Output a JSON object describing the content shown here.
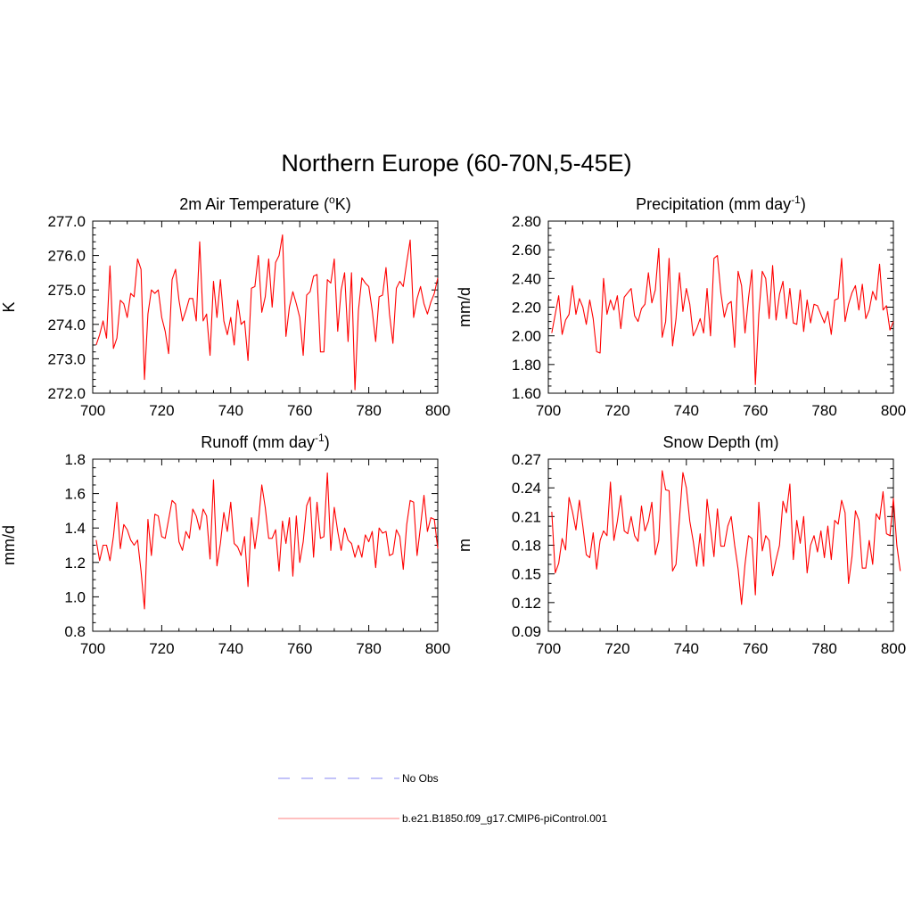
{
  "figure_title": "Northern Europe (60-70N,5-45E)",
  "legend": [
    {
      "label": "No Obs",
      "style": "dashed",
      "color": "#9f9ff5"
    },
    {
      "label": "b.e21.B1850.f09_g17.CMIP6-piControl.001",
      "style": "solid",
      "color": "#ff9a9a"
    }
  ],
  "line_color": "#ff0000",
  "chart_data": [
    {
      "type": "line",
      "title_parts": [
        {
          "t": "2m Air Temperature ("
        },
        {
          "t": "o",
          "sup": true
        },
        {
          "t": "K)"
        }
      ],
      "ylabel": "K",
      "xlim": [
        700,
        800
      ],
      "ylim": [
        272.0,
        277.0
      ],
      "xticks": [
        700,
        720,
        740,
        760,
        780,
        800
      ],
      "yticks": [
        272.0,
        273.0,
        274.0,
        275.0,
        276.0,
        277.0
      ],
      "yticklabels": [
        "272.0",
        "273.0",
        "274.0",
        "275.0",
        "276.0",
        "277.0"
      ],
      "yminor": 4,
      "series": [
        {
          "name": "b.e21.B1850.f09_g17.CMIP6-piControl.001",
          "x_start": 701,
          "values": [
            273.4,
            273.7,
            274.1,
            273.6,
            275.7,
            273.3,
            273.6,
            274.7,
            274.6,
            274.2,
            274.9,
            274.8,
            275.9,
            275.6,
            272.4,
            274.3,
            275.0,
            274.9,
            275.0,
            274.2,
            273.8,
            273.15,
            275.3,
            275.6,
            274.7,
            274.1,
            274.4,
            274.75,
            274.75,
            274.1,
            276.4,
            274.1,
            274.3,
            273.1,
            275.25,
            274.2,
            275.3,
            274.1,
            273.7,
            274.2,
            273.4,
            274.7,
            274.0,
            274.1,
            272.95,
            275.05,
            275.1,
            276.0,
            274.35,
            274.8,
            275.9,
            274.5,
            275.8,
            276.0,
            276.6,
            273.65,
            274.5,
            274.95,
            274.6,
            274.2,
            273.1,
            274.85,
            274.95,
            275.4,
            275.45,
            273.2,
            273.2,
            275.3,
            275.2,
            275.9,
            273.8,
            275.0,
            275.5,
            273.5,
            275.5,
            272.1,
            274.4,
            275.35,
            275.2,
            275.1,
            274.4,
            273.5,
            274.8,
            274.85,
            275.65,
            274.3,
            273.45,
            275.05,
            275.25,
            275.1,
            275.8,
            276.45,
            274.2,
            274.75,
            275.1,
            274.6,
            274.3,
            274.65,
            274.9,
            275.35
          ]
        }
      ]
    },
    {
      "type": "line",
      "title_parts": [
        {
          "t": "Precipitation (mm day"
        },
        {
          "t": "-1",
          "sup": true
        },
        {
          "t": ")"
        }
      ],
      "ylabel": "mm/d",
      "xlim": [
        700,
        800
      ],
      "ylim": [
        1.6,
        2.8
      ],
      "xticks": [
        700,
        720,
        740,
        760,
        780,
        800
      ],
      "yticks": [
        1.6,
        1.8,
        2.0,
        2.2,
        2.4,
        2.6,
        2.8
      ],
      "yticklabels": [
        "1.60",
        "1.80",
        "2.00",
        "2.20",
        "2.40",
        "2.60",
        "2.80"
      ],
      "yminor": 3,
      "series": [
        {
          "name": "b.e21.B1850.f09_g17.CMIP6-piControl.001",
          "x_start": 701,
          "values": [
            2.02,
            2.15,
            2.28,
            2.01,
            2.11,
            2.15,
            2.35,
            2.15,
            2.26,
            2.2,
            2.08,
            2.25,
            2.12,
            1.89,
            1.88,
            2.4,
            2.15,
            2.25,
            2.18,
            2.28,
            2.05,
            2.27,
            2.3,
            2.33,
            2.14,
            2.1,
            2.19,
            2.22,
            2.44,
            2.23,
            2.32,
            2.61,
            1.99,
            2.1,
            2.54,
            1.93,
            2.12,
            2.44,
            2.17,
            2.33,
            2.22,
            2.0,
            2.05,
            2.12,
            2.02,
            2.33,
            2.0,
            2.54,
            2.56,
            2.3,
            2.13,
            2.22,
            2.24,
            1.92,
            2.45,
            2.35,
            2.02,
            2.26,
            2.46,
            1.66,
            2.15,
            2.45,
            2.4,
            2.12,
            2.49,
            2.11,
            2.29,
            2.38,
            2.12,
            2.33,
            2.09,
            2.08,
            2.32,
            2.03,
            2.25,
            2.09,
            2.22,
            2.21,
            2.15,
            2.09,
            2.17,
            2.01,
            2.25,
            2.26,
            2.54,
            2.1,
            2.22,
            2.3,
            2.35,
            2.18,
            2.36,
            2.12,
            2.18,
            2.31,
            2.25,
            2.5,
            2.18,
            2.21,
            2.04,
            2.1
          ]
        }
      ]
    },
    {
      "type": "line",
      "title_parts": [
        {
          "t": "Runoff (mm day"
        },
        {
          "t": "-1",
          "sup": true
        },
        {
          "t": ")"
        }
      ],
      "ylabel": "mm/d",
      "xlim": [
        700,
        800
      ],
      "ylim": [
        0.8,
        1.8
      ],
      "xticks": [
        700,
        720,
        740,
        760,
        780,
        800
      ],
      "yticks": [
        0.8,
        1.0,
        1.2,
        1.4,
        1.6,
        1.8
      ],
      "yticklabels": [
        "0.8",
        "1.0",
        "1.2",
        "1.4",
        "1.6",
        "1.8"
      ],
      "yminor": 3,
      "series": [
        {
          "name": "b.e21.B1850.f09_g17.CMIP6-piControl.001",
          "x_start": 701,
          "values": [
            1.33,
            1.21,
            1.3,
            1.3,
            1.21,
            1.35,
            1.55,
            1.28,
            1.42,
            1.39,
            1.33,
            1.3,
            1.33,
            1.15,
            0.93,
            1.45,
            1.24,
            1.48,
            1.47,
            1.35,
            1.34,
            1.45,
            1.56,
            1.54,
            1.32,
            1.27,
            1.38,
            1.34,
            1.51,
            1.47,
            1.39,
            1.51,
            1.47,
            1.22,
            1.68,
            1.18,
            1.31,
            1.49,
            1.38,
            1.55,
            1.31,
            1.29,
            1.24,
            1.35,
            1.06,
            1.46,
            1.28,
            1.43,
            1.65,
            1.52,
            1.34,
            1.34,
            1.39,
            1.15,
            1.44,
            1.31,
            1.46,
            1.12,
            1.47,
            1.2,
            1.32,
            1.53,
            1.58,
            1.23,
            1.55,
            1.34,
            1.35,
            1.72,
            1.27,
            1.52,
            1.38,
            1.27,
            1.4,
            1.33,
            1.31,
            1.23,
            1.3,
            1.23,
            1.36,
            1.32,
            1.38,
            1.17,
            1.4,
            1.37,
            1.38,
            1.24,
            1.25,
            1.39,
            1.35,
            1.16,
            1.42,
            1.56,
            1.55,
            1.24,
            1.41,
            1.59,
            1.38,
            1.46,
            1.45,
            1.28
          ]
        }
      ]
    },
    {
      "type": "line",
      "title_parts": [
        {
          "t": "Snow Depth (m)"
        }
      ],
      "ylabel": "m",
      "xlim": [
        700,
        800
      ],
      "ylim": [
        0.09,
        0.27
      ],
      "xticks": [
        700,
        720,
        740,
        760,
        780,
        800
      ],
      "yticks": [
        0.09,
        0.12,
        0.15,
        0.18,
        0.21,
        0.24,
        0.27
      ],
      "yticklabels": [
        "0.09",
        "0.12",
        "0.15",
        "0.18",
        "0.21",
        "0.24",
        "0.27"
      ],
      "yminor": 2,
      "series": [
        {
          "name": "b.e21.B1850.f09_g17.CMIP6-piControl.001",
          "x_start": 701,
          "values": [
            0.215,
            0.151,
            0.161,
            0.187,
            0.175,
            0.23,
            0.215,
            0.196,
            0.227,
            0.2,
            0.17,
            0.167,
            0.193,
            0.155,
            0.185,
            0.195,
            0.19,
            0.246,
            0.185,
            0.205,
            0.232,
            0.195,
            0.192,
            0.21,
            0.19,
            0.184,
            0.221,
            0.195,
            0.205,
            0.225,
            0.17,
            0.185,
            0.258,
            0.238,
            0.237,
            0.153,
            0.16,
            0.208,
            0.256,
            0.24,
            0.205,
            0.184,
            0.158,
            0.192,
            0.158,
            0.228,
            0.198,
            0.168,
            0.218,
            0.179,
            0.179,
            0.2,
            0.21,
            0.18,
            0.155,
            0.118,
            0.16,
            0.19,
            0.187,
            0.128,
            0.225,
            0.174,
            0.19,
            0.185,
            0.148,
            0.165,
            0.18,
            0.226,
            0.214,
            0.244,
            0.165,
            0.206,
            0.182,
            0.21,
            0.151,
            0.18,
            0.19,
            0.173,
            0.195,
            0.167,
            0.2,
            0.165,
            0.206,
            0.202,
            0.227,
            0.214,
            0.14,
            0.168,
            0.216,
            0.206,
            0.156,
            0.156,
            0.185,
            0.16,
            0.213,
            0.207,
            0.236,
            0.192,
            0.19,
            0.229,
            0.18,
            0.153
          ]
        }
      ]
    }
  ]
}
